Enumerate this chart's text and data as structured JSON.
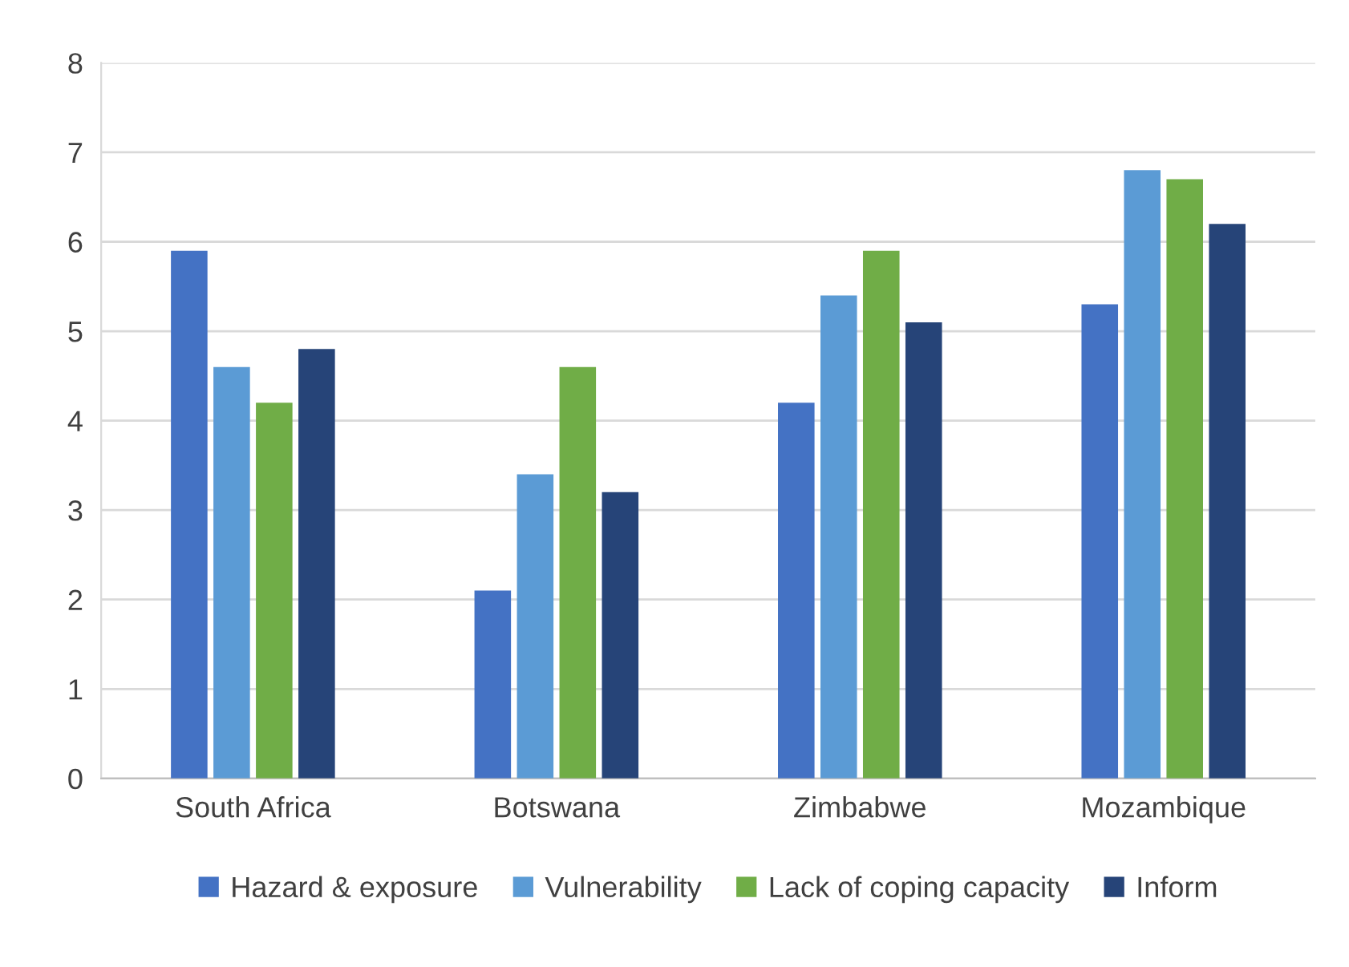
{
  "chart_data": {
    "type": "bar",
    "categories": [
      "South Africa",
      "Botswana",
      "Zimbabwe",
      "Mozambique"
    ],
    "series": [
      {
        "name": "Hazard & exposure",
        "color": "#4472c4",
        "values": [
          5.9,
          2.1,
          4.2,
          5.3
        ]
      },
      {
        "name": "Vulnerability",
        "color": "#5b9bd5",
        "values": [
          4.6,
          3.4,
          5.4,
          6.8
        ]
      },
      {
        "name": "Lack of coping capacity",
        "color": "#70ad47",
        "values": [
          4.2,
          4.6,
          5.9,
          6.7
        ]
      },
      {
        "name": "Inform",
        "color": "#264478",
        "values": [
          4.8,
          3.2,
          5.1,
          6.2
        ]
      }
    ],
    "ylim": [
      0,
      8
    ],
    "yticks": [
      0,
      1,
      2,
      3,
      4,
      5,
      6,
      7,
      8
    ],
    "grid": "y",
    "legend": "bottom"
  }
}
